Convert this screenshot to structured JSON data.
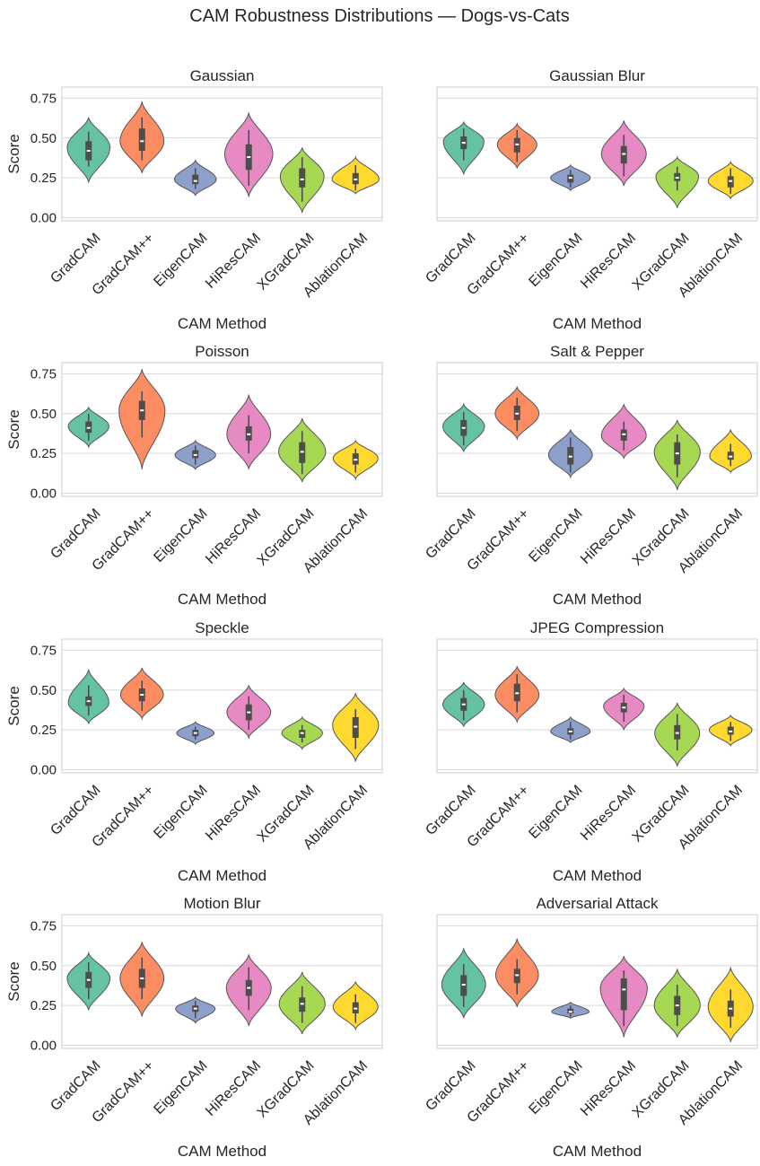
{
  "figure_title": "CAM Robustness Distributions — Dogs-vs-Cats",
  "colors": {
    "GradCAM": "#66c2a5",
    "GradCAM++": "#fc8d62",
    "EigenCAM": "#8da0cb",
    "HiResCAM": "#e78ac3",
    "XGradCAM": "#a6d854",
    "AblationCAM": "#ffd92f",
    "box": "#4d4d4d",
    "median": "#ffffff",
    "grid": "#d9d9d9",
    "frame": "#cccccc"
  },
  "chart_data": [
    {
      "type": "violin",
      "title": "Gaussian",
      "xlabel": "CAM Method",
      "ylabel": "Score",
      "ylim": [
        -0.02,
        0.82
      ],
      "yticks": [
        "0.00",
        "0.25",
        "0.50",
        "0.75"
      ],
      "categories": [
        "GradCAM",
        "GradCAM++",
        "EigenCAM",
        "HiResCAM",
        "XGradCAM",
        "AblationCAM"
      ],
      "series": [
        {
          "name": "GradCAM",
          "min": 0.22,
          "max": 0.63,
          "mode": 0.44,
          "q1": 0.36,
          "median": 0.42,
          "q3": 0.48,
          "wlo": 0.32,
          "whi": 0.54,
          "width": 0.8
        },
        {
          "name": "GradCAM++",
          "min": 0.28,
          "max": 0.73,
          "mode": 0.48,
          "q1": 0.42,
          "median": 0.48,
          "q3": 0.56,
          "wlo": 0.36,
          "whi": 0.63,
          "width": 0.82
        },
        {
          "name": "EigenCAM",
          "min": 0.14,
          "max": 0.36,
          "mode": 0.24,
          "q1": 0.21,
          "median": 0.23,
          "q3": 0.27,
          "wlo": 0.18,
          "whi": 0.31,
          "width": 0.78
        },
        {
          "name": "HiResCAM",
          "min": 0.13,
          "max": 0.66,
          "mode": 0.4,
          "q1": 0.3,
          "median": 0.38,
          "q3": 0.46,
          "wlo": 0.2,
          "whi": 0.55,
          "width": 0.9
        },
        {
          "name": "XGradCAM",
          "min": 0.03,
          "max": 0.44,
          "mode": 0.26,
          "q1": 0.19,
          "median": 0.24,
          "q3": 0.31,
          "wlo": 0.1,
          "whi": 0.38,
          "width": 0.82
        },
        {
          "name": "AblationCAM",
          "min": 0.15,
          "max": 0.38,
          "mode": 0.24,
          "q1": 0.21,
          "median": 0.24,
          "q3": 0.28,
          "wlo": 0.17,
          "whi": 0.33,
          "width": 0.88
        }
      ]
    },
    {
      "type": "violin",
      "title": "Gaussian Blur",
      "xlabel": "CAM Method",
      "ylabel": "",
      "ylim": [
        -0.02,
        0.82
      ],
      "yticks": [],
      "categories": [
        "GradCAM",
        "GradCAM++",
        "EigenCAM",
        "HiResCAM",
        "XGradCAM",
        "AblationCAM"
      ],
      "series": [
        {
          "name": "GradCAM",
          "min": 0.27,
          "max": 0.6,
          "mode": 0.48,
          "q1": 0.43,
          "median": 0.47,
          "q3": 0.51,
          "wlo": 0.36,
          "whi": 0.56,
          "width": 0.76
        },
        {
          "name": "GradCAM++",
          "min": 0.31,
          "max": 0.59,
          "mode": 0.46,
          "q1": 0.41,
          "median": 0.46,
          "q3": 0.5,
          "wlo": 0.35,
          "whi": 0.55,
          "width": 0.74
        },
        {
          "name": "EigenCAM",
          "min": 0.17,
          "max": 0.33,
          "mode": 0.25,
          "q1": 0.22,
          "median": 0.25,
          "q3": 0.27,
          "wlo": 0.19,
          "whi": 0.3,
          "width": 0.74
        },
        {
          "name": "HiResCAM",
          "min": 0.2,
          "max": 0.61,
          "mode": 0.4,
          "q1": 0.34,
          "median": 0.4,
          "q3": 0.45,
          "wlo": 0.26,
          "whi": 0.52,
          "width": 0.84
        },
        {
          "name": "XGradCAM",
          "min": 0.06,
          "max": 0.38,
          "mode": 0.26,
          "q1": 0.23,
          "median": 0.25,
          "q3": 0.28,
          "wlo": 0.17,
          "whi": 0.32,
          "width": 0.8
        },
        {
          "name": "AblationCAM",
          "min": 0.12,
          "max": 0.35,
          "mode": 0.23,
          "q1": 0.19,
          "median": 0.23,
          "q3": 0.26,
          "wlo": 0.15,
          "whi": 0.31,
          "width": 0.84
        }
      ]
    },
    {
      "type": "violin",
      "title": "Poisson",
      "xlabel": "CAM Method",
      "ylabel": "Score",
      "ylim": [
        -0.02,
        0.82
      ],
      "yticks": [
        "0.00",
        "0.25",
        "0.50",
        "0.75"
      ],
      "categories": [
        "GradCAM",
        "GradCAM++",
        "EigenCAM",
        "HiResCAM",
        "XGradCAM",
        "AblationCAM"
      ],
      "series": [
        {
          "name": "GradCAM",
          "min": 0.29,
          "max": 0.54,
          "mode": 0.42,
          "q1": 0.38,
          "median": 0.41,
          "q3": 0.45,
          "wlo": 0.33,
          "whi": 0.5,
          "width": 0.76
        },
        {
          "name": "GradCAM++",
          "min": 0.15,
          "max": 0.78,
          "mode": 0.52,
          "q1": 0.46,
          "median": 0.52,
          "q3": 0.58,
          "wlo": 0.35,
          "whi": 0.64,
          "width": 0.86
        },
        {
          "name": "EigenCAM",
          "min": 0.15,
          "max": 0.33,
          "mode": 0.24,
          "q1": 0.22,
          "median": 0.24,
          "q3": 0.27,
          "wlo": 0.18,
          "whi": 0.3,
          "width": 0.76
        },
        {
          "name": "HiResCAM",
          "min": 0.15,
          "max": 0.62,
          "mode": 0.37,
          "q1": 0.33,
          "median": 0.37,
          "q3": 0.42,
          "wlo": 0.25,
          "whi": 0.49,
          "width": 0.82
        },
        {
          "name": "XGradCAM",
          "min": 0.07,
          "max": 0.47,
          "mode": 0.26,
          "q1": 0.19,
          "median": 0.26,
          "q3": 0.32,
          "wlo": 0.12,
          "whi": 0.39,
          "width": 0.88
        },
        {
          "name": "AblationCAM",
          "min": 0.09,
          "max": 0.33,
          "mode": 0.22,
          "q1": 0.18,
          "median": 0.21,
          "q3": 0.25,
          "wlo": 0.13,
          "whi": 0.28,
          "width": 0.84
        }
      ]
    },
    {
      "type": "violin",
      "title": "Salt & Pepper",
      "xlabel": "CAM Method",
      "ylabel": "",
      "ylim": [
        -0.02,
        0.82
      ],
      "yticks": [],
      "categories": [
        "GradCAM",
        "GradCAM++",
        "EigenCAM",
        "HiResCAM",
        "XGradCAM",
        "AblationCAM"
      ],
      "series": [
        {
          "name": "GradCAM",
          "min": 0.26,
          "max": 0.56,
          "mode": 0.42,
          "q1": 0.36,
          "median": 0.41,
          "q3": 0.46,
          "wlo": 0.3,
          "whi": 0.51,
          "width": 0.78
        },
        {
          "name": "GradCAM++",
          "min": 0.34,
          "max": 0.67,
          "mode": 0.5,
          "q1": 0.46,
          "median": 0.5,
          "q3": 0.55,
          "wlo": 0.39,
          "whi": 0.6,
          "width": 0.82
        },
        {
          "name": "EigenCAM",
          "min": 0.1,
          "max": 0.4,
          "mode": 0.24,
          "q1": 0.18,
          "median": 0.23,
          "q3": 0.29,
          "wlo": 0.13,
          "whi": 0.35,
          "width": 0.82
        },
        {
          "name": "HiResCAM",
          "min": 0.22,
          "max": 0.56,
          "mode": 0.36,
          "q1": 0.33,
          "median": 0.37,
          "q3": 0.4,
          "wlo": 0.27,
          "whi": 0.45,
          "width": 0.84
        },
        {
          "name": "XGradCAM",
          "min": 0.02,
          "max": 0.46,
          "mode": 0.26,
          "q1": 0.18,
          "median": 0.25,
          "q3": 0.32,
          "wlo": 0.1,
          "whi": 0.37,
          "width": 0.86
        },
        {
          "name": "AblationCAM",
          "min": 0.13,
          "max": 0.4,
          "mode": 0.23,
          "q1": 0.21,
          "median": 0.23,
          "q3": 0.26,
          "wlo": 0.17,
          "whi": 0.31,
          "width": 0.78
        }
      ]
    },
    {
      "type": "violin",
      "title": "Speckle",
      "xlabel": "CAM Method",
      "ylabel": "Score",
      "ylim": [
        -0.02,
        0.82
      ],
      "yticks": [
        "0.00",
        "0.25",
        "0.50",
        "0.75"
      ],
      "categories": [
        "GradCAM",
        "GradCAM++",
        "EigenCAM",
        "HiResCAM",
        "XGradCAM",
        "AblationCAM"
      ],
      "series": [
        {
          "name": "GradCAM",
          "min": 0.29,
          "max": 0.63,
          "mode": 0.42,
          "q1": 0.4,
          "median": 0.43,
          "q3": 0.46,
          "wlo": 0.34,
          "whi": 0.53,
          "width": 0.76
        },
        {
          "name": "GradCAM++",
          "min": 0.32,
          "max": 0.64,
          "mode": 0.47,
          "q1": 0.43,
          "median": 0.47,
          "q3": 0.51,
          "wlo": 0.37,
          "whi": 0.56,
          "width": 0.8
        },
        {
          "name": "EigenCAM",
          "min": 0.16,
          "max": 0.3,
          "mode": 0.23,
          "q1": 0.21,
          "median": 0.23,
          "q3": 0.25,
          "wlo": 0.19,
          "whi": 0.27,
          "width": 0.7
        },
        {
          "name": "HiResCAM",
          "min": 0.2,
          "max": 0.53,
          "mode": 0.36,
          "q1": 0.31,
          "median": 0.36,
          "q3": 0.41,
          "wlo": 0.25,
          "whi": 0.46,
          "width": 0.82
        },
        {
          "name": "XGradCAM",
          "min": 0.13,
          "max": 0.33,
          "mode": 0.23,
          "q1": 0.2,
          "median": 0.23,
          "q3": 0.25,
          "wlo": 0.17,
          "whi": 0.28,
          "width": 0.76
        },
        {
          "name": "AblationCAM",
          "min": 0.05,
          "max": 0.48,
          "mode": 0.28,
          "q1": 0.2,
          "median": 0.27,
          "q3": 0.33,
          "wlo": 0.13,
          "whi": 0.38,
          "width": 0.86
        }
      ]
    },
    {
      "type": "violin",
      "title": "JPEG Compression",
      "xlabel": "CAM Method",
      "ylabel": "",
      "ylim": [
        -0.02,
        0.82
      ],
      "yticks": [],
      "categories": [
        "GradCAM",
        "GradCAM++",
        "EigenCAM",
        "HiResCAM",
        "XGradCAM",
        "AblationCAM"
      ],
      "series": [
        {
          "name": "GradCAM",
          "min": 0.27,
          "max": 0.55,
          "mode": 0.41,
          "q1": 0.37,
          "median": 0.41,
          "q3": 0.45,
          "wlo": 0.31,
          "whi": 0.5,
          "width": 0.78
        },
        {
          "name": "GradCAM++",
          "min": 0.3,
          "max": 0.65,
          "mode": 0.47,
          "q1": 0.43,
          "median": 0.48,
          "q3": 0.54,
          "wlo": 0.36,
          "whi": 0.6,
          "width": 0.82
        },
        {
          "name": "EigenCAM",
          "min": 0.17,
          "max": 0.33,
          "mode": 0.24,
          "q1": 0.22,
          "median": 0.24,
          "q3": 0.26,
          "wlo": 0.19,
          "whi": 0.3,
          "width": 0.74
        },
        {
          "name": "HiResCAM",
          "min": 0.25,
          "max": 0.51,
          "mode": 0.4,
          "q1": 0.36,
          "median": 0.39,
          "q3": 0.42,
          "wlo": 0.3,
          "whi": 0.47,
          "width": 0.76
        },
        {
          "name": "XGradCAM",
          "min": 0.02,
          "max": 0.42,
          "mode": 0.23,
          "q1": 0.19,
          "median": 0.23,
          "q3": 0.28,
          "wlo": 0.12,
          "whi": 0.35,
          "width": 0.84
        },
        {
          "name": "AblationCAM",
          "min": 0.15,
          "max": 0.34,
          "mode": 0.25,
          "q1": 0.22,
          "median": 0.24,
          "q3": 0.27,
          "wlo": 0.18,
          "whi": 0.3,
          "width": 0.8
        }
      ]
    },
    {
      "type": "violin",
      "title": "Motion Blur",
      "xlabel": "CAM Method",
      "ylabel": "Score",
      "ylim": [
        -0.02,
        0.82
      ],
      "yticks": [
        "0.00",
        "0.25",
        "0.50",
        "0.75"
      ],
      "categories": [
        "GradCAM",
        "GradCAM++",
        "EigenCAM",
        "HiResCAM",
        "XGradCAM",
        "AblationCAM"
      ],
      "series": [
        {
          "name": "GradCAM",
          "min": 0.22,
          "max": 0.58,
          "mode": 0.42,
          "q1": 0.36,
          "median": 0.41,
          "q3": 0.46,
          "wlo": 0.29,
          "whi": 0.52,
          "width": 0.8
        },
        {
          "name": "GradCAM++",
          "min": 0.18,
          "max": 0.65,
          "mode": 0.42,
          "q1": 0.36,
          "median": 0.42,
          "q3": 0.48,
          "wlo": 0.29,
          "whi": 0.55,
          "width": 0.82
        },
        {
          "name": "EigenCAM",
          "min": 0.14,
          "max": 0.3,
          "mode": 0.23,
          "q1": 0.21,
          "median": 0.23,
          "q3": 0.25,
          "wlo": 0.17,
          "whi": 0.28,
          "width": 0.74
        },
        {
          "name": "HiResCAM",
          "min": 0.12,
          "max": 0.57,
          "mode": 0.36,
          "q1": 0.31,
          "median": 0.36,
          "q3": 0.41,
          "wlo": 0.22,
          "whi": 0.49,
          "width": 0.84
        },
        {
          "name": "XGradCAM",
          "min": 0.07,
          "max": 0.46,
          "mode": 0.26,
          "q1": 0.21,
          "median": 0.26,
          "q3": 0.3,
          "wlo": 0.14,
          "whi": 0.37,
          "width": 0.86
        },
        {
          "name": "AblationCAM",
          "min": 0.1,
          "max": 0.4,
          "mode": 0.24,
          "q1": 0.2,
          "median": 0.23,
          "q3": 0.27,
          "wlo": 0.14,
          "whi": 0.32,
          "width": 0.84
        }
      ]
    },
    {
      "type": "violin",
      "title": "Adversarial Attack",
      "xlabel": "CAM Method",
      "ylabel": "",
      "ylim": [
        -0.02,
        0.82
      ],
      "yticks": [],
      "categories": [
        "GradCAM",
        "GradCAM++",
        "EigenCAM",
        "HiResCAM",
        "XGradCAM",
        "AblationCAM"
      ],
      "series": [
        {
          "name": "GradCAM",
          "min": 0.17,
          "max": 0.61,
          "mode": 0.38,
          "q1": 0.31,
          "median": 0.38,
          "q3": 0.44,
          "wlo": 0.24,
          "whi": 0.51,
          "width": 0.82
        },
        {
          "name": "GradCAM++",
          "min": 0.24,
          "max": 0.67,
          "mode": 0.44,
          "q1": 0.39,
          "median": 0.44,
          "q3": 0.48,
          "wlo": 0.32,
          "whi": 0.54,
          "width": 0.8
        },
        {
          "name": "EigenCAM",
          "min": 0.17,
          "max": 0.27,
          "mode": 0.21,
          "q1": 0.2,
          "median": 0.21,
          "q3": 0.23,
          "wlo": 0.18,
          "whi": 0.25,
          "width": 0.7
        },
        {
          "name": "HiResCAM",
          "min": 0.05,
          "max": 0.56,
          "mode": 0.36,
          "q1": 0.22,
          "median": 0.35,
          "q3": 0.42,
          "wlo": 0.12,
          "whi": 0.47,
          "width": 0.88
        },
        {
          "name": "XGradCAM",
          "min": 0.05,
          "max": 0.48,
          "mode": 0.25,
          "q1": 0.19,
          "median": 0.25,
          "q3": 0.31,
          "wlo": 0.12,
          "whi": 0.38,
          "width": 0.86
        },
        {
          "name": "AblationCAM",
          "min": 0.02,
          "max": 0.49,
          "mode": 0.24,
          "q1": 0.18,
          "median": 0.23,
          "q3": 0.28,
          "wlo": 0.11,
          "whi": 0.35,
          "width": 0.84
        }
      ]
    }
  ]
}
